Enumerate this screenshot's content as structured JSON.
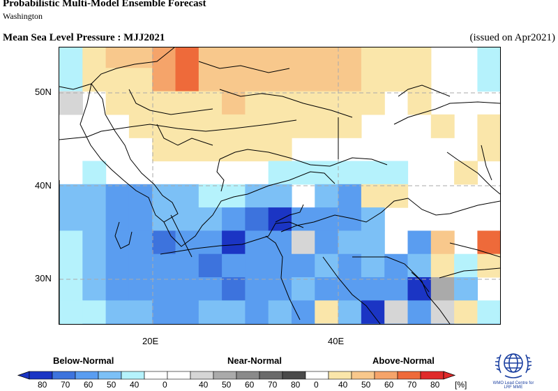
{
  "header": {
    "title": "Probabilistic Multi-Model Ensemble Forecast",
    "subtitle": "Washington",
    "field": "Mean Sea Level Pressure : MJJ2021",
    "issued": "(issued on Apr2021)"
  },
  "map": {
    "lat_labels": [
      "50N",
      "40N",
      "30N"
    ],
    "lon_labels": [
      "20E",
      "40E"
    ],
    "colors": {
      "B80": "#1b35c4",
      "B70": "#3d73dd",
      "B60": "#5a9df0",
      "B50": "#7cc0f6",
      "B40": "#b5f2fc",
      "N40": "#d6d6d6",
      "N50": "#aaaaaa",
      "N60": "#8a8a8a",
      "N70": "#6a6a6a",
      "N80": "#4a4a4a",
      "A40": "#fae6aa",
      "A50": "#f8c88c",
      "A60": "#f5a46a",
      "A70": "#ee6a3a",
      "A80": "#e02a2a"
    }
  },
  "legend": {
    "categories": [
      "Below-Normal",
      "Near-Normal",
      "Above-Normal"
    ],
    "ticks": [
      "80",
      "70",
      "60",
      "50",
      "40",
      "0",
      "40",
      "50",
      "60",
      "70",
      "80",
      "0",
      "40",
      "50",
      "60",
      "70",
      "80"
    ],
    "unit": "[%]"
  },
  "logo": {
    "line1": "WMO Lead Centre for",
    "line2": "LRF MME"
  }
}
